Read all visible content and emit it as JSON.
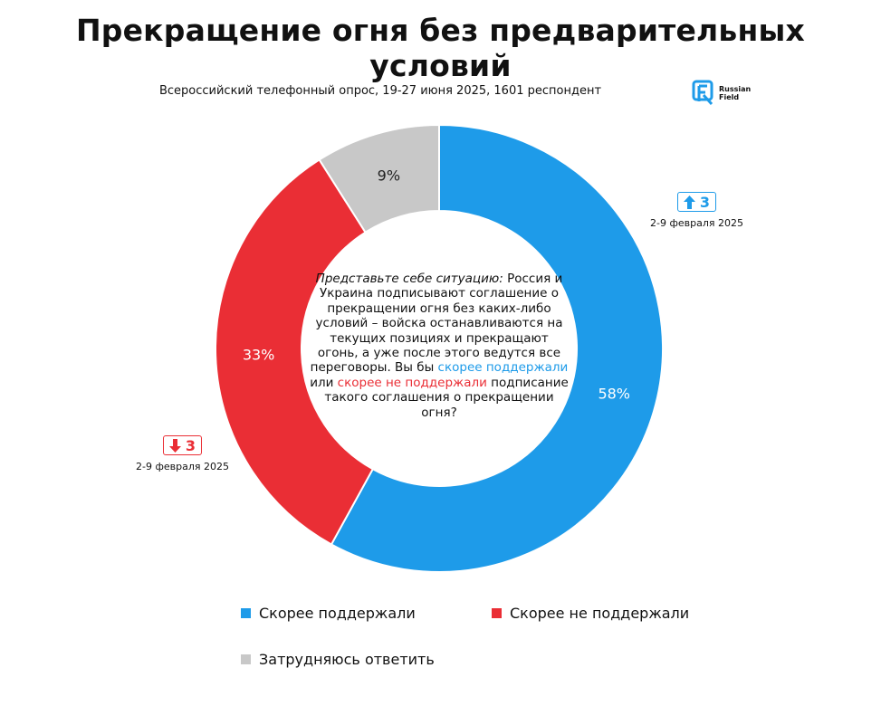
{
  "title": "Прекращение огня без предварительных условий",
  "subtitle": "Всероссийский телефонный опрос, 19-27 июня 2025, 1601 респондент",
  "logo": {
    "line1": "Russian",
    "line2": "Field"
  },
  "center_question": {
    "intro_italic": "Представьте себе ситуацию:",
    "part1": "Россия и Украина подписывают соглашение о прекращении огня без каких-либо условий – войска останавливаются на текущих позициях и прекращают огонь, а уже после этого ведутся все переговоры. Вы бы",
    "option_support": "скорее поддержали",
    "connector": "или",
    "option_oppose": "скорее не поддержали",
    "part2": "подписание такого соглашения о прекращении огня?"
  },
  "changes": {
    "support": {
      "value": "3",
      "direction": "up",
      "date": "2-9 февраля 2025"
    },
    "oppose": {
      "value": "3",
      "direction": "down",
      "date": "2-9 февраля 2025"
    }
  },
  "colors": {
    "support": "#1e9be9",
    "oppose": "#ea2e35",
    "unsure": "#c8c8c8"
  },
  "chart_data": {
    "type": "pie",
    "variant": "donut",
    "title": "Прекращение огня без предварительных условий",
    "categories": [
      "Скорее поддержали",
      "Скорее не поддержали",
      "Затрудняюсь ответить"
    ],
    "values": [
      58,
      33,
      9
    ],
    "labels": [
      "58%",
      "33%",
      "9%"
    ],
    "unit": "%"
  }
}
